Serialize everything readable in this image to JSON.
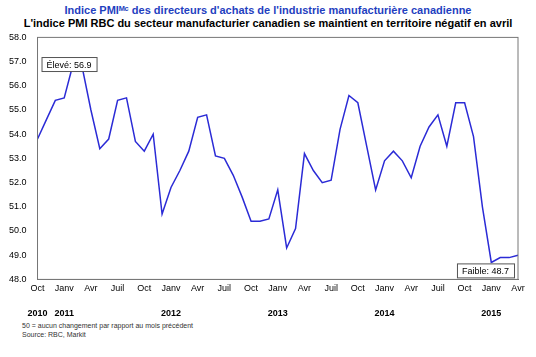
{
  "chart_data": {
    "type": "line",
    "title": "Indice PMIᴹᶜ des directeurs d'achats de l'industrie manufacturière canadienne",
    "subtitle": "L'indice PMI RBC du secteur manufacturier canadien se maintient en territoire négatif en avril",
    "categories": [
      "Oct",
      null,
      null,
      "Janv",
      null,
      null,
      "Avr",
      null,
      null,
      "Juil",
      null,
      null,
      "Oct",
      null,
      null,
      "Janv",
      null,
      null,
      "Avr",
      null,
      null,
      "Juil",
      null,
      null,
      "Oct",
      null,
      null,
      "Janv",
      null,
      null,
      "Avr",
      null,
      null,
      "Juil",
      null,
      null,
      "Oct",
      null,
      null,
      "Janv",
      null,
      null,
      "Avr",
      null,
      null,
      "Juil",
      null,
      null,
      "Oct",
      null,
      null,
      "Janv",
      null,
      null,
      "Avr"
    ],
    "year_labels": [
      "2010",
      null,
      null,
      "2011",
      null,
      null,
      null,
      null,
      null,
      null,
      null,
      null,
      null,
      null,
      null,
      "2012",
      null,
      null,
      null,
      null,
      null,
      null,
      null,
      null,
      null,
      null,
      null,
      "2013",
      null,
      null,
      null,
      null,
      null,
      null,
      null,
      null,
      null,
      null,
      null,
      "2014",
      null,
      null,
      null,
      null,
      null,
      null,
      null,
      null,
      null,
      null,
      null,
      "2015",
      null,
      null,
      null
    ],
    "values": [
      53.8,
      54.6,
      55.4,
      55.5,
      56.9,
      56.8,
      55.0,
      53.4,
      53.8,
      55.4,
      55.5,
      53.7,
      53.3,
      54.0,
      50.7,
      51.8,
      52.5,
      53.3,
      54.7,
      54.8,
      53.1,
      53.0,
      52.3,
      51.4,
      50.4,
      50.4,
      50.5,
      51.7,
      49.3,
      50.1,
      53.2,
      52.5,
      52.0,
      52.1,
      54.2,
      55.6,
      55.3,
      53.5,
      51.7,
      52.9,
      53.3,
      52.9,
      52.2,
      53.5,
      54.3,
      54.8,
      53.5,
      55.3,
      55.3,
      53.9,
      51.0,
      48.7,
      48.9,
      48.9,
      49.0
    ],
    "color": "#2b2bd6",
    "ylim": [
      48.0,
      58.0
    ],
    "yticks": [
      {
        "value": 48,
        "label": "48.0"
      },
      {
        "value": 49,
        "label": "49.0"
      },
      {
        "value": 50,
        "label": "50.0"
      },
      {
        "value": 51,
        "label": "51.0"
      },
      {
        "value": 52,
        "label": "52.0"
      },
      {
        "value": 53,
        "label": "53.0"
      },
      {
        "value": 54,
        "label": "54.0"
      },
      {
        "value": 55,
        "label": "55.0"
      },
      {
        "value": 56,
        "label": "56.0"
      },
      {
        "value": 57,
        "label": "57.0"
      },
      {
        "value": 58,
        "label": "58.0"
      }
    ],
    "grid": false,
    "annotations": [
      {
        "text": "Élevé: 56.9",
        "value": 56.9
      },
      {
        "text": "Faible: 48.7",
        "value": 48.7
      }
    ],
    "notes": [
      "50 = aucun changement par rapport au mois précédent",
      "Source: RBC, Markit"
    ]
  }
}
